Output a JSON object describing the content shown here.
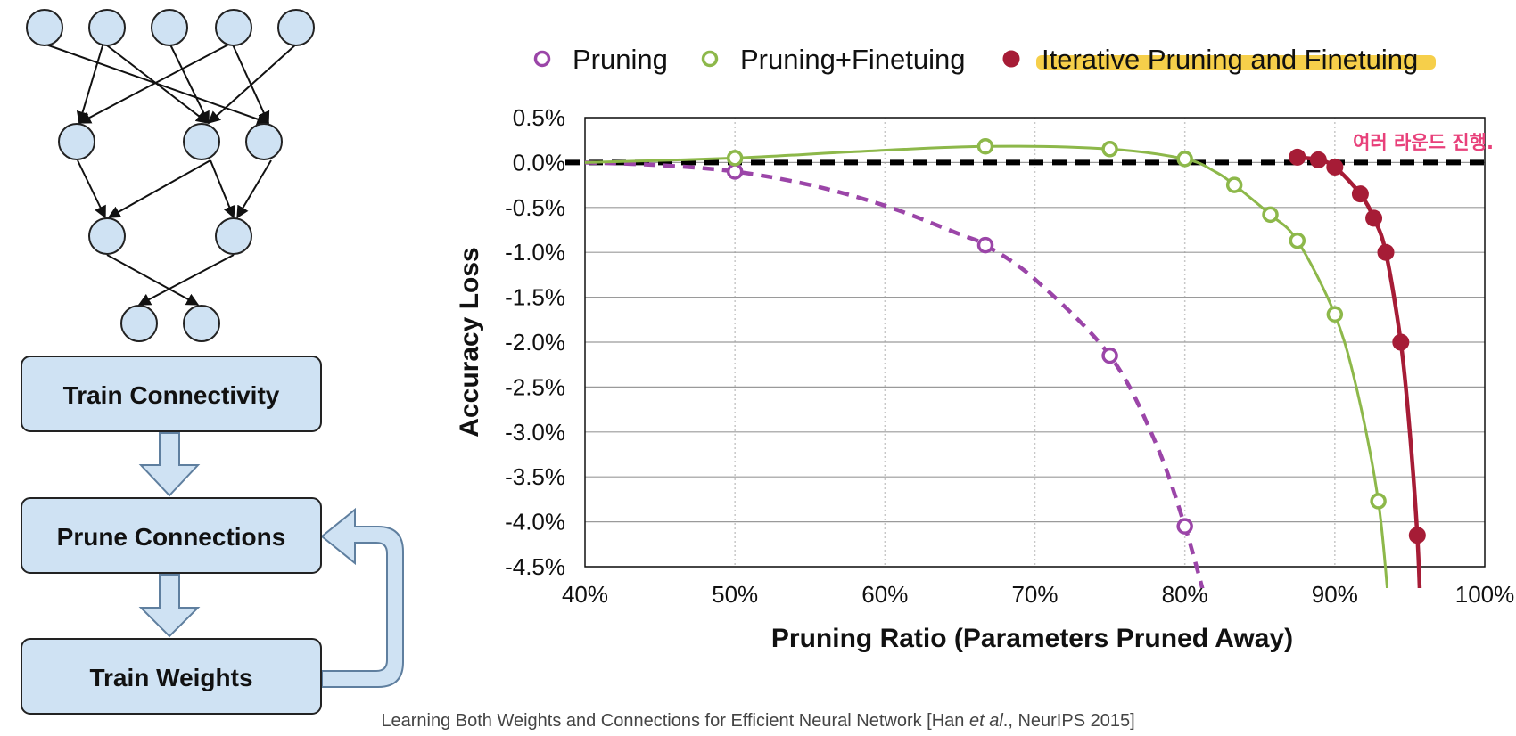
{
  "diagram": {
    "steps": [
      "Train Connectivity",
      "Prune Connections",
      "Train Weights"
    ],
    "node_fill": "#cfe2f3",
    "node_stroke": "#222222",
    "arrow_fill": "#cfe2f3",
    "arrow_stroke": "#5f7f9f"
  },
  "chart_data": {
    "type": "line",
    "xlabel": "Pruning Ratio (Parameters Pruned Away)",
    "ylabel": "Accuracy Loss",
    "xlim": [
      40,
      100
    ],
    "ylim": [
      -4.5,
      0.5
    ],
    "x_ticks": [
      "40%",
      "50%",
      "60%",
      "70%",
      "80%",
      "90%",
      "100%"
    ],
    "y_ticks": [
      "0.5%",
      "0.0%",
      "-0.5%",
      "-1.0%",
      "-1.5%",
      "-2.0%",
      "-2.5%",
      "-3.0%",
      "-3.5%",
      "-4.0%",
      "-4.5%"
    ],
    "grid": true,
    "legend_position": "top",
    "baseline": 0.0,
    "annotation": "여러 라운드 진행.",
    "series": [
      {
        "name": "Pruning",
        "color": "#9b45a8",
        "style": "dashed",
        "marker": "open-circle",
        "points": [
          [
            50,
            -0.1
          ],
          [
            66.7,
            -0.92
          ],
          [
            75,
            -2.15
          ],
          [
            80,
            -4.05
          ]
        ],
        "curve": [
          [
            40,
            0.0
          ],
          [
            45,
            -0.03
          ],
          [
            50,
            -0.1
          ],
          [
            55,
            -0.25
          ],
          [
            60,
            -0.48
          ],
          [
            65,
            -0.8
          ],
          [
            66.7,
            -0.92
          ],
          [
            70,
            -1.3
          ],
          [
            75,
            -2.15
          ],
          [
            78,
            -3.1
          ],
          [
            80,
            -4.05
          ],
          [
            81.5,
            -4.95
          ]
        ]
      },
      {
        "name": "Pruning+Finetuing",
        "color": "#8db84a",
        "style": "solid",
        "marker": "open-circle",
        "points": [
          [
            50,
            0.05
          ],
          [
            66.7,
            0.18
          ],
          [
            75,
            0.15
          ],
          [
            80,
            0.04
          ],
          [
            83.3,
            -0.25
          ],
          [
            85.7,
            -0.58
          ],
          [
            87.5,
            -0.87
          ],
          [
            90,
            -1.69
          ],
          [
            92.9,
            -3.77
          ]
        ],
        "curve": [
          [
            40,
            0.0
          ],
          [
            50,
            0.05
          ],
          [
            58,
            0.12
          ],
          [
            66.7,
            0.18
          ],
          [
            75,
            0.15
          ],
          [
            80,
            0.04
          ],
          [
            82,
            -0.1
          ],
          [
            83.3,
            -0.25
          ],
          [
            85.7,
            -0.58
          ],
          [
            87.5,
            -0.87
          ],
          [
            90,
            -1.69
          ],
          [
            91.5,
            -2.55
          ],
          [
            92.9,
            -3.77
          ],
          [
            93.6,
            -4.95
          ]
        ]
      },
      {
        "name": "Iterative Pruning and Finetuing",
        "color": "#a61c36",
        "style": "solid",
        "marker": "filled-circle",
        "points": [
          [
            87.5,
            0.06
          ],
          [
            88.9,
            0.03
          ],
          [
            90,
            -0.05
          ],
          [
            91.7,
            -0.35
          ],
          [
            92.6,
            -0.62
          ],
          [
            93.4,
            -1.0
          ],
          [
            94.4,
            -2.0
          ],
          [
            95.5,
            -4.15
          ]
        ],
        "curve": [
          [
            87.5,
            0.06
          ],
          [
            88.9,
            0.03
          ],
          [
            90,
            -0.05
          ],
          [
            91.7,
            -0.35
          ],
          [
            92.6,
            -0.62
          ],
          [
            93.4,
            -1.0
          ],
          [
            94.4,
            -2.0
          ],
          [
            95.0,
            -3.0
          ],
          [
            95.5,
            -4.15
          ],
          [
            95.7,
            -4.95
          ]
        ]
      }
    ]
  },
  "caption": {
    "text_before": "Learning Both Weights and Connections for Efficient Neural Network [Han ",
    "text_italic": "et al",
    "text_after": "., NeurIPS 2015]"
  }
}
